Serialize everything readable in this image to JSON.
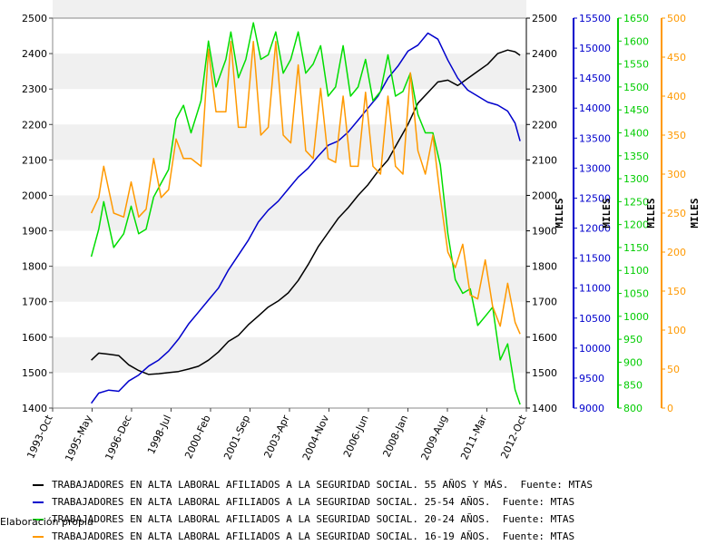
{
  "chart_data": {
    "type": "line",
    "x_ticks": [
      "1993-Oct",
      "1995-May",
      "1996-Dec",
      "1998-Jul",
      "2000-Feb",
      "2001-Sep",
      "2003-Apr",
      "2004-Nov",
      "2006-Jun",
      "2008-Jan",
      "2009-Aug",
      "2011-Mar",
      "2012-Oct"
    ],
    "grid": "horizontal bands",
    "axes": [
      {
        "id": "left",
        "range": [
          1400,
          2500
        ],
        "ticks": [
          "1400",
          "1500",
          "1600",
          "1700",
          "1800",
          "1900",
          "2000",
          "2100",
          "2200",
          "2300",
          "2400",
          "2500"
        ],
        "color": "#000000",
        "label": ""
      },
      {
        "id": "black",
        "range": [
          1400,
          2500
        ],
        "ticks": [
          "1400",
          "1500",
          "1600",
          "1700",
          "1800",
          "1900",
          "2000",
          "2100",
          "2200",
          "2300",
          "2400",
          "2500"
        ],
        "color": "#000000",
        "label": "MILES"
      },
      {
        "id": "blue",
        "range": [
          9000,
          15500
        ],
        "ticks": [
          "9000",
          "9500",
          "10000",
          "10500",
          "11000",
          "11500",
          "12000",
          "12500",
          "13000",
          "13500",
          "14000",
          "14500",
          "15000",
          "15500"
        ],
        "color": "#0000cc",
        "label": "MILES"
      },
      {
        "id": "green",
        "range": [
          800,
          1650
        ],
        "ticks": [
          "800",
          "850",
          "900",
          "950",
          "1000",
          "1050",
          "1100",
          "1150",
          "1200",
          "1250",
          "1300",
          "1350",
          "1400",
          "1450",
          "1500",
          "1550",
          "1600",
          "1650"
        ],
        "color": "#00cc00",
        "label": "MILES"
      },
      {
        "id": "orange",
        "range": [
          0,
          500
        ],
        "ticks": [
          "0",
          "50",
          "100",
          "150",
          "200",
          "250",
          "300",
          "350",
          "400",
          "450",
          "500"
        ],
        "color": "#ff9900",
        "label": "MILES"
      }
    ],
    "series": [
      {
        "name": "55+",
        "color": "#000000",
        "axis": "black",
        "points": [
          [
            1995.3,
            1535
          ],
          [
            1995.6,
            1555
          ],
          [
            1996.0,
            1552
          ],
          [
            1996.4,
            1548
          ],
          [
            1996.8,
            1522
          ],
          [
            1997.2,
            1506
          ],
          [
            1997.6,
            1495
          ],
          [
            1998.0,
            1497
          ],
          [
            1998.4,
            1500
          ],
          [
            1998.8,
            1503
          ],
          [
            1999.2,
            1510
          ],
          [
            1999.6,
            1518
          ],
          [
            2000.0,
            1535
          ],
          [
            2000.4,
            1558
          ],
          [
            2000.8,
            1588
          ],
          [
            2001.2,
            1605
          ],
          [
            2001.6,
            1635
          ],
          [
            2002.0,
            1660
          ],
          [
            2002.4,
            1685
          ],
          [
            2002.8,
            1702
          ],
          [
            2003.2,
            1725
          ],
          [
            2003.6,
            1760
          ],
          [
            2004.0,
            1805
          ],
          [
            2004.4,
            1855
          ],
          [
            2004.8,
            1895
          ],
          [
            2005.2,
            1935
          ],
          [
            2005.6,
            1965
          ],
          [
            2006.0,
            2000
          ],
          [
            2006.4,
            2030
          ],
          [
            2006.8,
            2068
          ],
          [
            2007.2,
            2100
          ],
          [
            2007.6,
            2150
          ],
          [
            2008.0,
            2200
          ],
          [
            2008.4,
            2260
          ],
          [
            2008.8,
            2290
          ],
          [
            2009.2,
            2320
          ],
          [
            2009.6,
            2325
          ],
          [
            2010.0,
            2310
          ],
          [
            2010.4,
            2330
          ],
          [
            2010.8,
            2350
          ],
          [
            2011.2,
            2370
          ],
          [
            2011.6,
            2400
          ],
          [
            2012.0,
            2410
          ],
          [
            2012.3,
            2405
          ],
          [
            2012.5,
            2395
          ]
        ]
      },
      {
        "name": "25-54",
        "color": "#0000cc",
        "axis": "blue",
        "points": [
          [
            1995.3,
            9080
          ],
          [
            1995.6,
            9250
          ],
          [
            1996.0,
            9300
          ],
          [
            1996.4,
            9280
          ],
          [
            1996.8,
            9450
          ],
          [
            1997.2,
            9550
          ],
          [
            1997.6,
            9700
          ],
          [
            1998.0,
            9800
          ],
          [
            1998.4,
            9950
          ],
          [
            1998.8,
            10150
          ],
          [
            1999.2,
            10400
          ],
          [
            1999.6,
            10600
          ],
          [
            2000.0,
            10800
          ],
          [
            2000.4,
            11000
          ],
          [
            2000.8,
            11300
          ],
          [
            2001.2,
            11550
          ],
          [
            2001.6,
            11800
          ],
          [
            2002.0,
            12100
          ],
          [
            2002.4,
            12300
          ],
          [
            2002.8,
            12450
          ],
          [
            2003.2,
            12650
          ],
          [
            2003.6,
            12850
          ],
          [
            2004.0,
            13000
          ],
          [
            2004.4,
            13200
          ],
          [
            2004.8,
            13380
          ],
          [
            2005.2,
            13450
          ],
          [
            2005.6,
            13600
          ],
          [
            2006.0,
            13800
          ],
          [
            2006.4,
            14000
          ],
          [
            2006.8,
            14200
          ],
          [
            2007.2,
            14500
          ],
          [
            2007.6,
            14700
          ],
          [
            2008.0,
            14950
          ],
          [
            2008.4,
            15050
          ],
          [
            2008.8,
            15250
          ],
          [
            2009.2,
            15150
          ],
          [
            2009.6,
            14800
          ],
          [
            2010.0,
            14500
          ],
          [
            2010.4,
            14300
          ],
          [
            2010.8,
            14200
          ],
          [
            2011.2,
            14100
          ],
          [
            2011.6,
            14050
          ],
          [
            2012.0,
            13950
          ],
          [
            2012.3,
            13750
          ],
          [
            2012.5,
            13450
          ]
        ]
      },
      {
        "name": "20-24",
        "color": "#00dd00",
        "axis": "green",
        "points": [
          [
            1995.3,
            1130
          ],
          [
            1995.6,
            1190
          ],
          [
            1995.8,
            1250
          ],
          [
            1996.2,
            1150
          ],
          [
            1996.6,
            1180
          ],
          [
            1996.9,
            1240
          ],
          [
            1997.2,
            1180
          ],
          [
            1997.5,
            1190
          ],
          [
            1997.8,
            1260
          ],
          [
            1998.1,
            1290
          ],
          [
            1998.4,
            1320
          ],
          [
            1998.7,
            1430
          ],
          [
            1999.0,
            1460
          ],
          [
            1999.3,
            1400
          ],
          [
            1999.7,
            1470
          ],
          [
            2000.0,
            1600
          ],
          [
            2000.3,
            1500
          ],
          [
            2000.7,
            1560
          ],
          [
            2000.9,
            1620
          ],
          [
            2001.2,
            1520
          ],
          [
            2001.5,
            1560
          ],
          [
            2001.8,
            1640
          ],
          [
            2002.1,
            1560
          ],
          [
            2002.4,
            1570
          ],
          [
            2002.7,
            1620
          ],
          [
            2003.0,
            1530
          ],
          [
            2003.3,
            1560
          ],
          [
            2003.6,
            1620
          ],
          [
            2003.9,
            1530
          ],
          [
            2004.2,
            1550
          ],
          [
            2004.5,
            1590
          ],
          [
            2004.8,
            1480
          ],
          [
            2005.1,
            1500
          ],
          [
            2005.4,
            1590
          ],
          [
            2005.7,
            1480
          ],
          [
            2006.0,
            1500
          ],
          [
            2006.3,
            1560
          ],
          [
            2006.6,
            1470
          ],
          [
            2006.9,
            1490
          ],
          [
            2007.2,
            1570
          ],
          [
            2007.5,
            1480
          ],
          [
            2007.8,
            1490
          ],
          [
            2008.1,
            1530
          ],
          [
            2008.4,
            1440
          ],
          [
            2008.7,
            1400
          ],
          [
            2009.0,
            1400
          ],
          [
            2009.3,
            1330
          ],
          [
            2009.6,
            1180
          ],
          [
            2009.9,
            1080
          ],
          [
            2010.2,
            1050
          ],
          [
            2010.5,
            1060
          ],
          [
            2010.8,
            980
          ],
          [
            2011.1,
            1000
          ],
          [
            2011.4,
            1020
          ],
          [
            2011.7,
            905
          ],
          [
            2012.0,
            940
          ],
          [
            2012.3,
            840
          ],
          [
            2012.5,
            808
          ]
        ]
      },
      {
        "name": "16-19",
        "color": "#ff9900",
        "axis": "orange",
        "points": [
          [
            1995.3,
            250
          ],
          [
            1995.6,
            270
          ],
          [
            1995.8,
            310
          ],
          [
            1996.2,
            250
          ],
          [
            1996.6,
            245
          ],
          [
            1996.9,
            290
          ],
          [
            1997.2,
            245
          ],
          [
            1997.5,
            255
          ],
          [
            1997.8,
            320
          ],
          [
            1998.1,
            270
          ],
          [
            1998.4,
            280
          ],
          [
            1998.7,
            345
          ],
          [
            1999.0,
            320
          ],
          [
            1999.3,
            320
          ],
          [
            1999.7,
            310
          ],
          [
            2000.0,
            460
          ],
          [
            2000.3,
            380
          ],
          [
            2000.7,
            380
          ],
          [
            2000.9,
            470
          ],
          [
            2001.2,
            360
          ],
          [
            2001.5,
            360
          ],
          [
            2001.8,
            470
          ],
          [
            2002.1,
            350
          ],
          [
            2002.4,
            360
          ],
          [
            2002.7,
            470
          ],
          [
            2003.0,
            350
          ],
          [
            2003.3,
            340
          ],
          [
            2003.6,
            440
          ],
          [
            2003.9,
            330
          ],
          [
            2004.2,
            320
          ],
          [
            2004.5,
            410
          ],
          [
            2004.8,
            320
          ],
          [
            2005.1,
            315
          ],
          [
            2005.4,
            400
          ],
          [
            2005.7,
            310
          ],
          [
            2006.0,
            310
          ],
          [
            2006.3,
            405
          ],
          [
            2006.6,
            310
          ],
          [
            2006.9,
            300
          ],
          [
            2007.2,
            400
          ],
          [
            2007.5,
            310
          ],
          [
            2007.8,
            300
          ],
          [
            2008.1,
            430
          ],
          [
            2008.4,
            330
          ],
          [
            2008.7,
            300
          ],
          [
            2009.0,
            350
          ],
          [
            2009.3,
            270
          ],
          [
            2009.6,
            200
          ],
          [
            2009.9,
            180
          ],
          [
            2010.2,
            210
          ],
          [
            2010.5,
            145
          ],
          [
            2010.8,
            140
          ],
          [
            2011.1,
            190
          ],
          [
            2011.4,
            130
          ],
          [
            2011.7,
            105
          ],
          [
            2012.0,
            160
          ],
          [
            2012.3,
            110
          ],
          [
            2012.5,
            95
          ]
        ]
      }
    ]
  },
  "legend": [
    {
      "label": "TRABAJADORES EN ALTA LABORAL AFILIADOS A LA SEGURIDAD SOCIAL. 55 AÑOS Y MÁS.  Fuente: MTAS",
      "color": "#000000"
    },
    {
      "label": "TRABAJADORES EN ALTA LABORAL AFILIADOS A LA SEGURIDAD SOCIAL. 25-54 AÑOS.  Fuente: MTAS",
      "color": "#0000cc"
    },
    {
      "label": "TRABAJADORES EN ALTA LABORAL AFILIADOS A LA SEGURIDAD SOCIAL. 20-24 AÑOS.  Fuente: MTAS",
      "color": "#00dd00"
    },
    {
      "label": "TRABAJADORES EN ALTA LABORAL AFILIADOS A LA SEGURIDAD SOCIAL. 16-19 AÑOS.  Fuente: MTAS",
      "color": "#ff9900"
    }
  ],
  "credit": "Elaboración propia"
}
